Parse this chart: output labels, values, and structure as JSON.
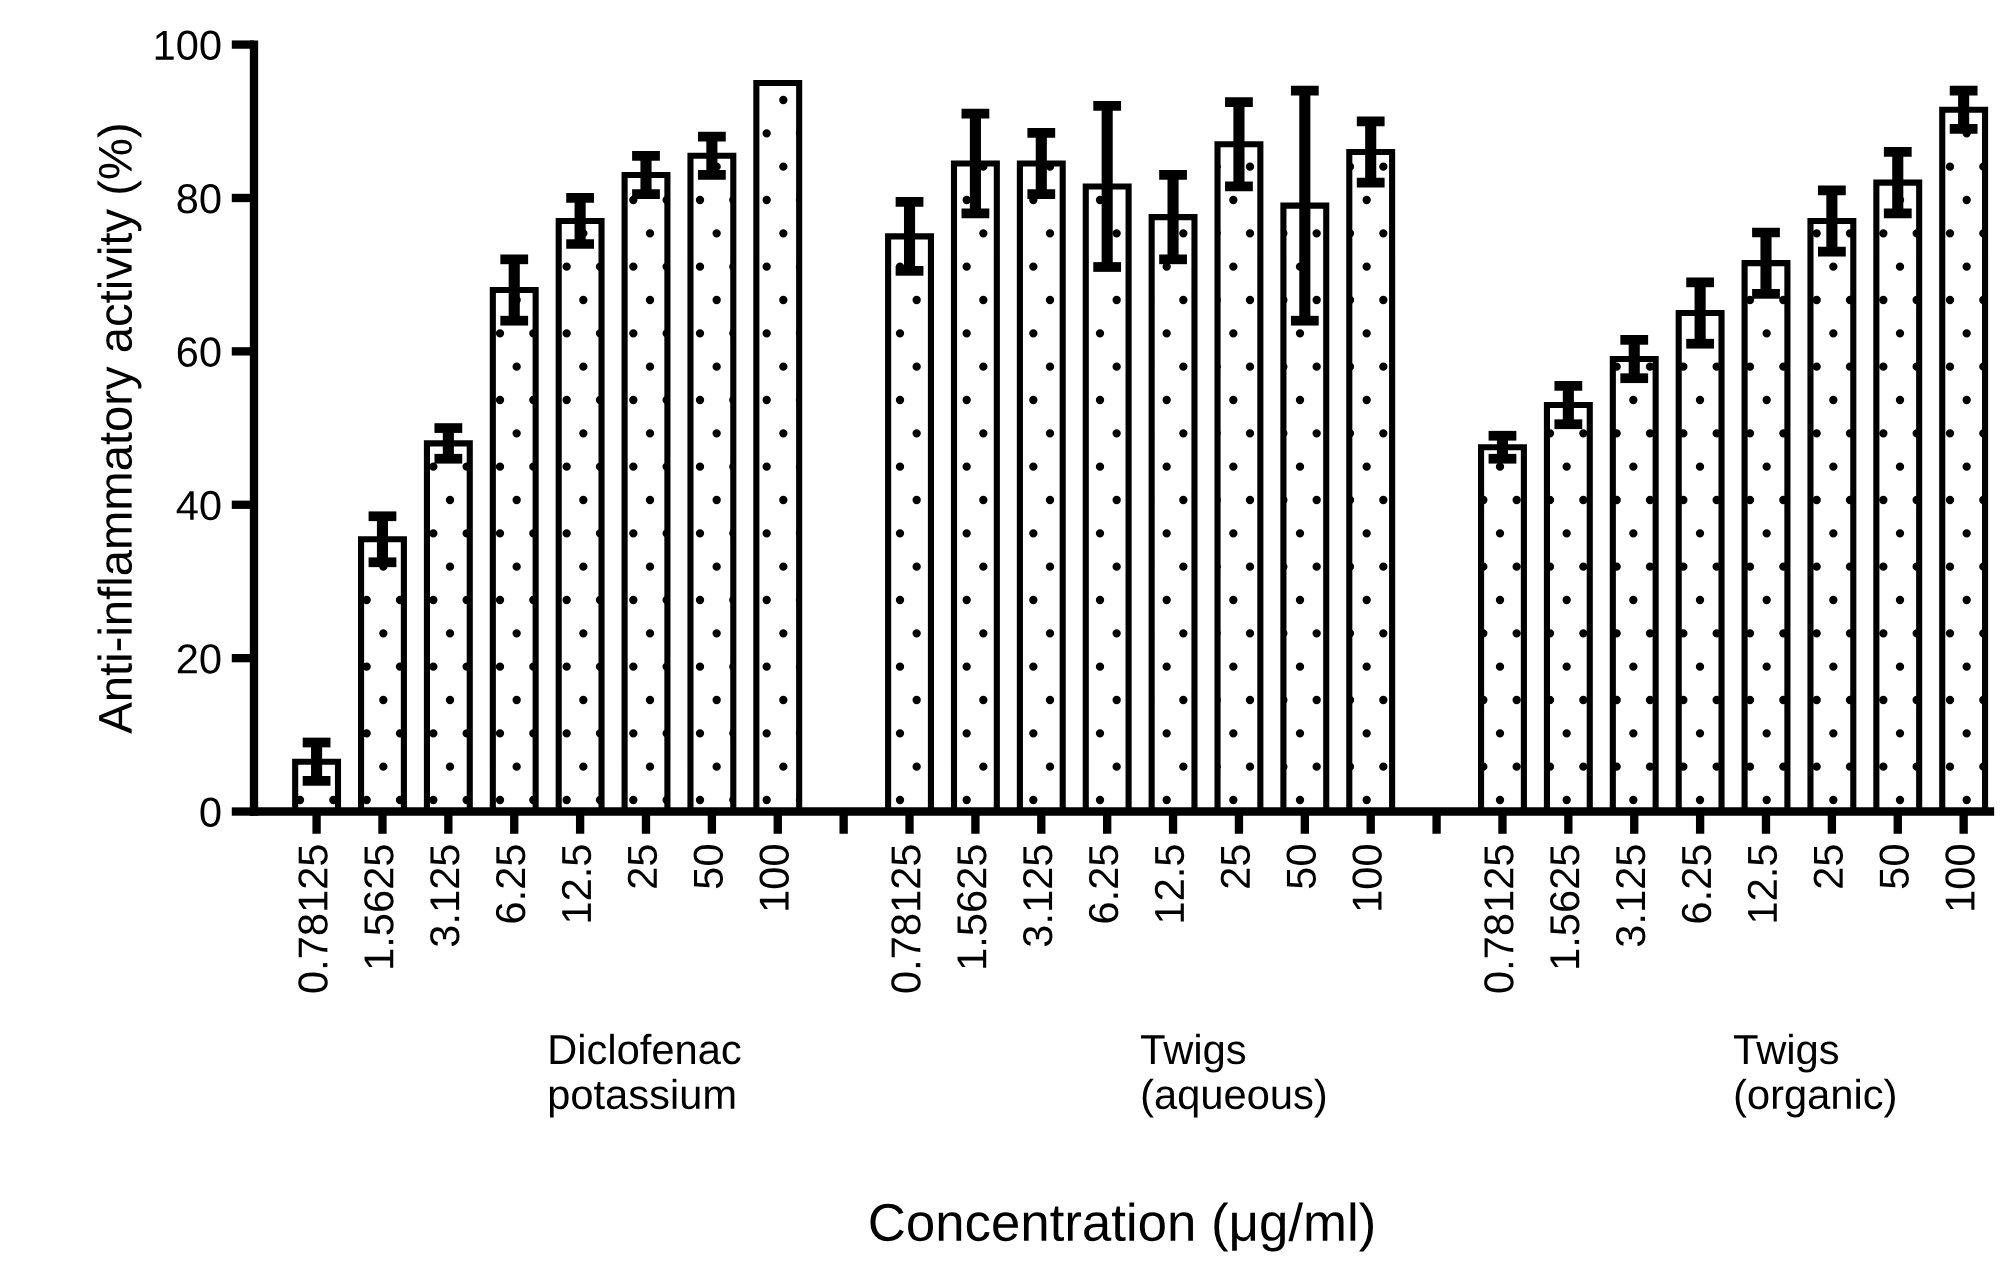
{
  "chart_data": {
    "type": "bar",
    "ylabel": "Anti-inflammatory activity (%)",
    "xlabel": "Concentration (μg/ml)",
    "categories": [
      "0.78125",
      "1.5625",
      "3.125",
      "6.25",
      "12.5",
      "25",
      "50",
      "100",
      null,
      "0.78125",
      "1.5625",
      "3.125",
      "6.25",
      "12.5",
      "25",
      "50",
      "100",
      null,
      "0.78125",
      "1.5625",
      "3.125",
      "6.25",
      "12.5",
      "25",
      "50",
      "100"
    ],
    "values": [
      6.5,
      35.5,
      48,
      68,
      77,
      83,
      85.5,
      95,
      null,
      75,
      84.5,
      84.5,
      81.5,
      77.5,
      87,
      79,
      86,
      null,
      47.5,
      53,
      59,
      65,
      71.5,
      77,
      82,
      91.5
    ],
    "errors": [
      2.5,
      3,
      2,
      4,
      3,
      2.5,
      2.5,
      null,
      null,
      4.5,
      6.5,
      4,
      10.5,
      5.5,
      5.5,
      15,
      4,
      null,
      1.5,
      2.5,
      2.5,
      4,
      4,
      4,
      4,
      2.5
    ],
    "color": "#000000",
    "ylim": [
      0,
      100
    ],
    "yticks": [
      0,
      20,
      40,
      60,
      80,
      100
    ],
    "annotations": [
      "Diclofenac\npotassium",
      "Twigs\n(aqueous)",
      "Twigs\n(organic)"
    ],
    "grid": false,
    "legend": false
  }
}
